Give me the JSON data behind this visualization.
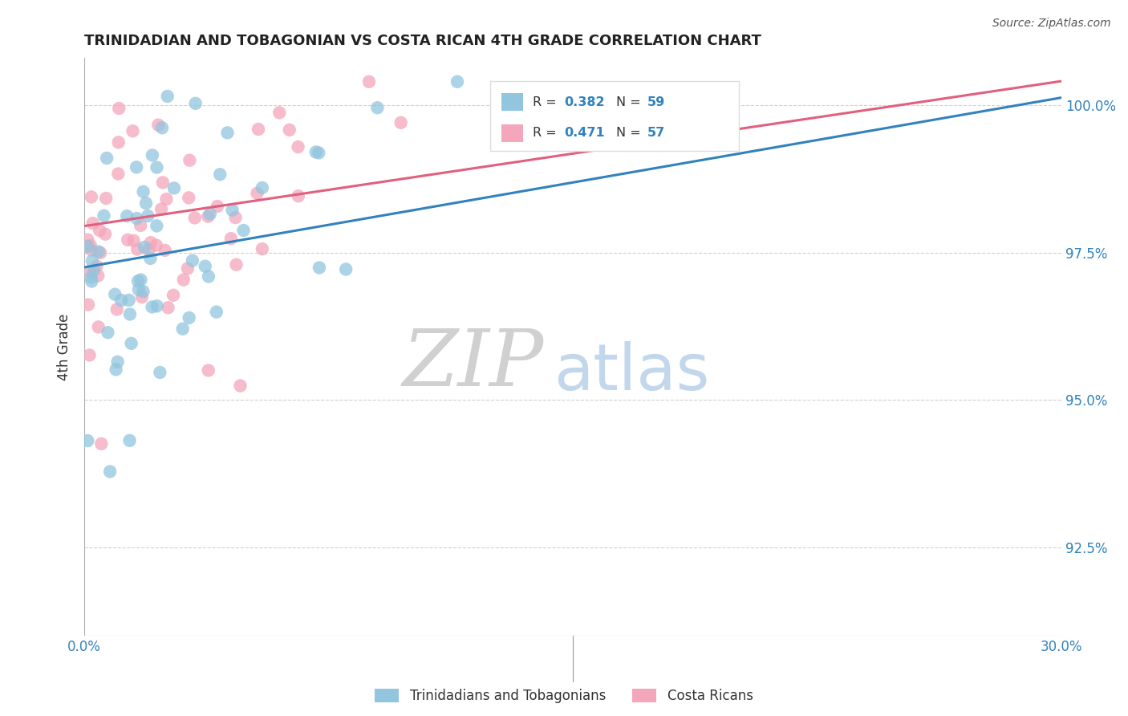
{
  "title": "TRINIDADIAN AND TOBAGONIAN VS COSTA RICAN 4TH GRADE CORRELATION CHART",
  "source_text": "Source: ZipAtlas.com",
  "ylabel": "4th Grade",
  "xlim": [
    0.0,
    0.3
  ],
  "ylim": [
    0.91,
    1.008
  ],
  "xtick_positions": [
    0.0,
    0.05,
    0.1,
    0.15,
    0.2,
    0.25,
    0.3
  ],
  "xtick_labels": [
    "0.0%",
    "",
    "",
    "",
    "",
    "",
    "30.0%"
  ],
  "ytick_positions": [
    0.925,
    0.95,
    0.975,
    1.0
  ],
  "ytick_labels": [
    "92.5%",
    "95.0%",
    "97.5%",
    "100.0%"
  ],
  "blue_color": "#92c5de",
  "pink_color": "#f4a6ba",
  "blue_line_color": "#3182bd",
  "pink_line_color": "#e0607e",
  "R_blue": 0.382,
  "N_blue": 59,
  "R_pink": 0.471,
  "N_pink": 57,
  "legend_labels": [
    "Trinidadians and Tobagonians",
    "Costa Ricans"
  ],
  "watermark_zip": "ZIP",
  "watermark_atlas": "atlas",
  "watermark_zip_color": "#c8c8c8",
  "watermark_atlas_color": "#b8d0e8",
  "background_color": "#ffffff",
  "grid_color": "#cccccc",
  "title_color": "#222222",
  "axis_label_color": "#333333",
  "tick_color": "#3182bd",
  "source_color": "#555555",
  "legend_text_color_R": "#333333",
  "legend_text_color_val": "#3182bd"
}
